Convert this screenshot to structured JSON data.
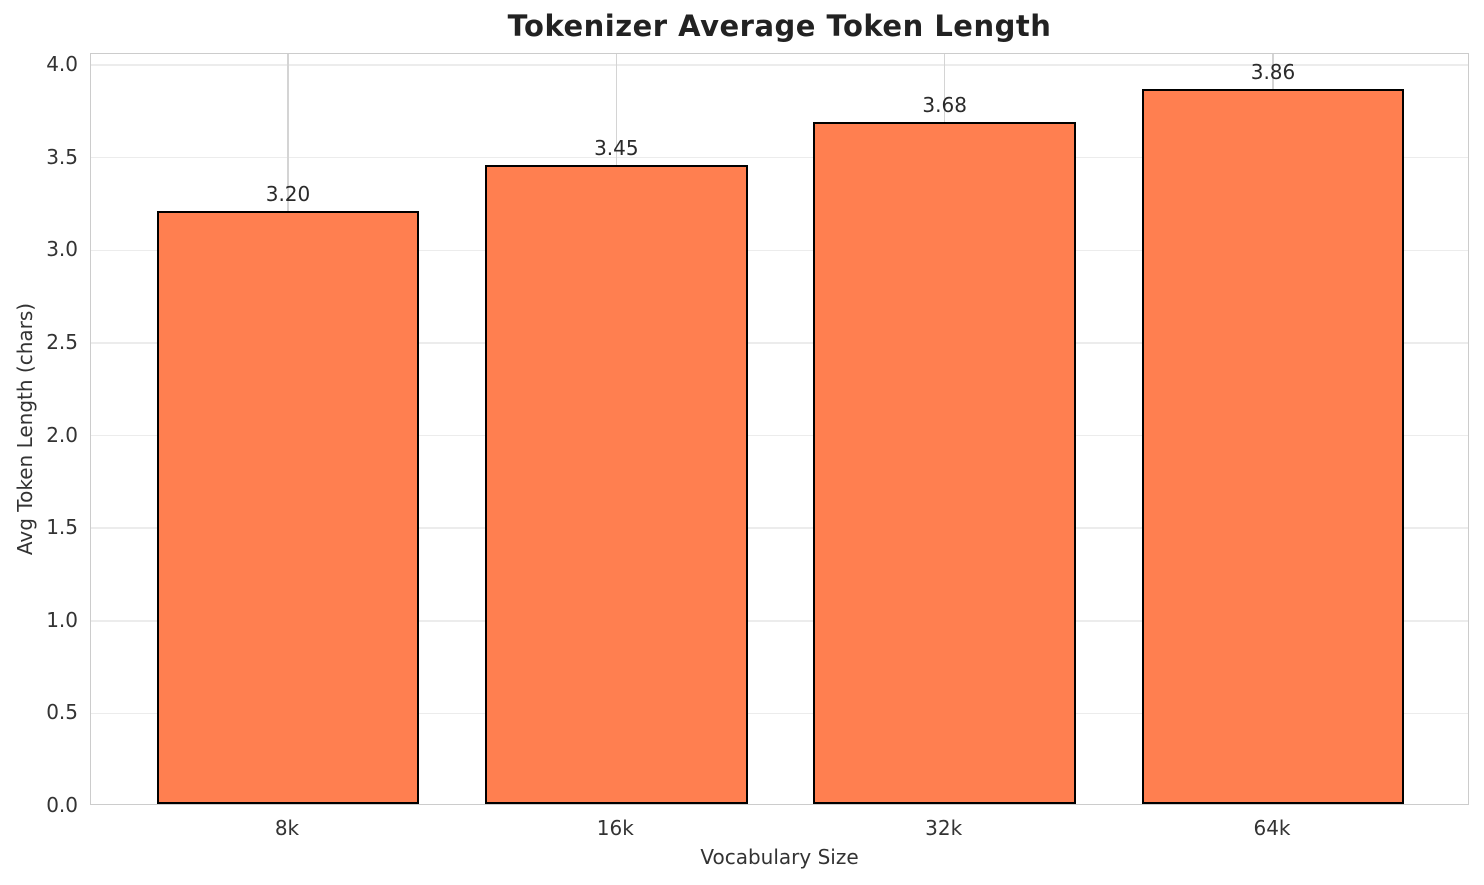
{
  "chart_data": {
    "type": "bar",
    "title": "Tokenizer Average Token Length",
    "xlabel": "Vocabulary Size",
    "ylabel": "Avg Token Length (chars)",
    "categories": [
      "8k",
      "16k",
      "32k",
      "64k"
    ],
    "values": [
      3.2,
      3.45,
      3.68,
      3.86
    ],
    "value_labels": [
      "3.20",
      "3.45",
      "3.68",
      "3.86"
    ],
    "yticks": [
      0,
      0.5,
      1,
      1.5,
      2,
      2.5,
      3,
      3.5,
      4
    ],
    "ytick_labels": [
      "0.0",
      "0.5",
      "1.0",
      "1.5",
      "2.0",
      "2.5",
      "3.0",
      "3.5",
      "4.0"
    ],
    "ylim": [
      0,
      4.06
    ],
    "grid": true,
    "legend_position": "none",
    "colors": {
      "bar_fill": "#FF7F50",
      "bar_edge": "#000000",
      "grid_horizontal": "#ececec",
      "grid_vertical": "#d4d4d4",
      "spine": "#cccccc",
      "title_text": "#222222",
      "tick_text": "#333333",
      "value_label_text": "#2a2a2a",
      "background": "#ffffff"
    }
  }
}
